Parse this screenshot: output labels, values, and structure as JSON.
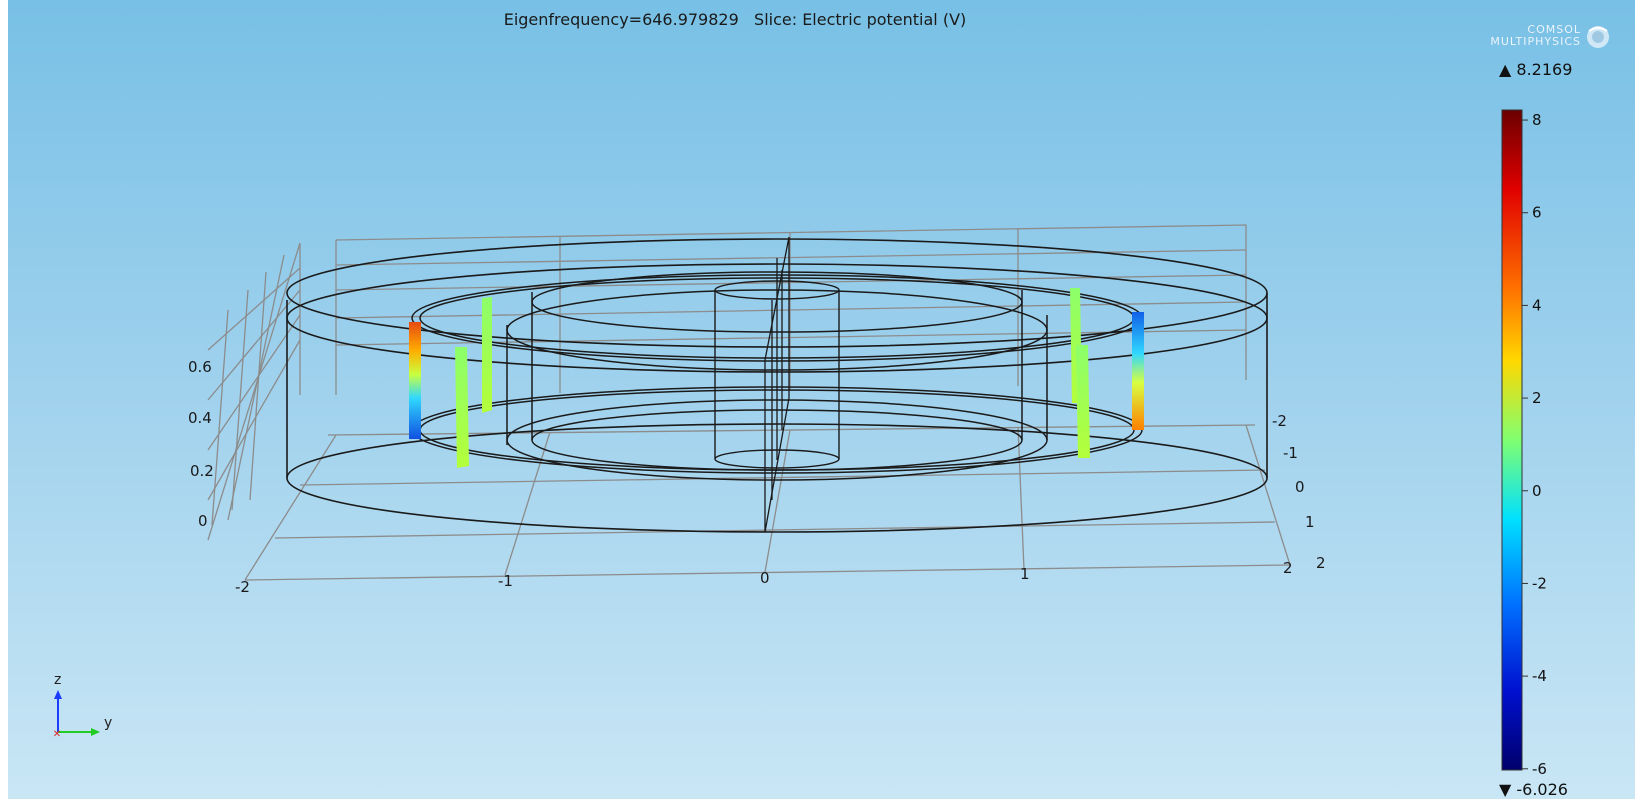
{
  "plot": {
    "title": "Eigenfrequency=646.979829   Slice: Electric potential (V)"
  },
  "logo": {
    "line1": "COMSOL",
    "line2": "MULTIPHYSICS"
  },
  "colorbar": {
    "max_label": "▲ 8.2169",
    "min_label": "▼ -6.026",
    "ticks": [
      "8",
      "6",
      "4",
      "2",
      "0",
      "-2",
      "-4",
      "-6"
    ],
    "tick_values": [
      8,
      6,
      4,
      2,
      0,
      -2,
      -4,
      -6
    ],
    "range": [
      -6.026,
      8.2169
    ],
    "colormap": "rainbow",
    "colors": [
      "#6b0000",
      "#ff2000",
      "#ffd000",
      "#7fff7f",
      "#00e5ff",
      "#0040ff",
      "#00006b"
    ]
  },
  "axes": {
    "z_ticks": [
      "0.6",
      "0.4",
      "0.2",
      "0"
    ],
    "x_ticks": [
      "-2",
      "-1",
      "0",
      "1",
      "2"
    ],
    "depth_ticks": [
      "-2",
      "-1",
      "0",
      "1",
      "2"
    ]
  },
  "triad": {
    "z_label": "z",
    "y_label": "y",
    "z_color": "#1a3cff",
    "y_color": "#22cc22",
    "x_color": "#e02020"
  }
}
